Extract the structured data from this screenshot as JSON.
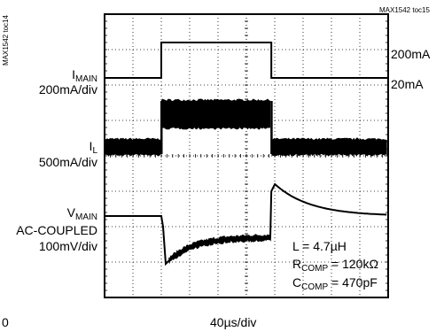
{
  "chart_data": {
    "type": "line",
    "x_unit": "40µs/div",
    "x_divisions": 10,
    "y_divisions": 8,
    "figure_id_top": "MAX1542 toc15",
    "figure_id_side": "MAX1542 toc14",
    "corner_fragment": "0",
    "channels": [
      {
        "label": {
          "base": "I",
          "sub": "MAIN"
        },
        "scale": "200mA/div",
        "right_labels": [
          "200mA",
          "20mA"
        ],
        "waveform": "step",
        "low_div_from_top": 1.8,
        "high_div_from_top": 0.8,
        "rise_at_div": 2.0,
        "fall_at_div": 5.88
      },
      {
        "label": {
          "base": "I",
          "sub": "L"
        },
        "scale": "500mA/div",
        "waveform": "noise_band",
        "low_band_div": [
          3.55,
          3.95
        ],
        "high_band_div": [
          2.45,
          3.2
        ],
        "rise_at_div": 2.0,
        "fall_at_div": 5.88
      },
      {
        "label": {
          "base": "V",
          "sub": "MAIN"
        },
        "label_line2": "AC-COUPLED",
        "scale": "100mV/div",
        "waveform": "transient",
        "baseline_div": 5.7,
        "undershoot_min_div": 7.05,
        "recovered_div": 6.3,
        "overshoot_max_div": 4.8,
        "step_at_div": 2.0,
        "release_at_div": 5.88
      }
    ],
    "annotations": [
      {
        "base": "L = 4.7",
        "unit": "µH"
      },
      {
        "base": "R",
        "sub": "COMP",
        "rest": " = 120k",
        "unit": "Ω"
      },
      {
        "base": "C",
        "sub": "COMP",
        "rest": " = 470pF"
      }
    ]
  }
}
